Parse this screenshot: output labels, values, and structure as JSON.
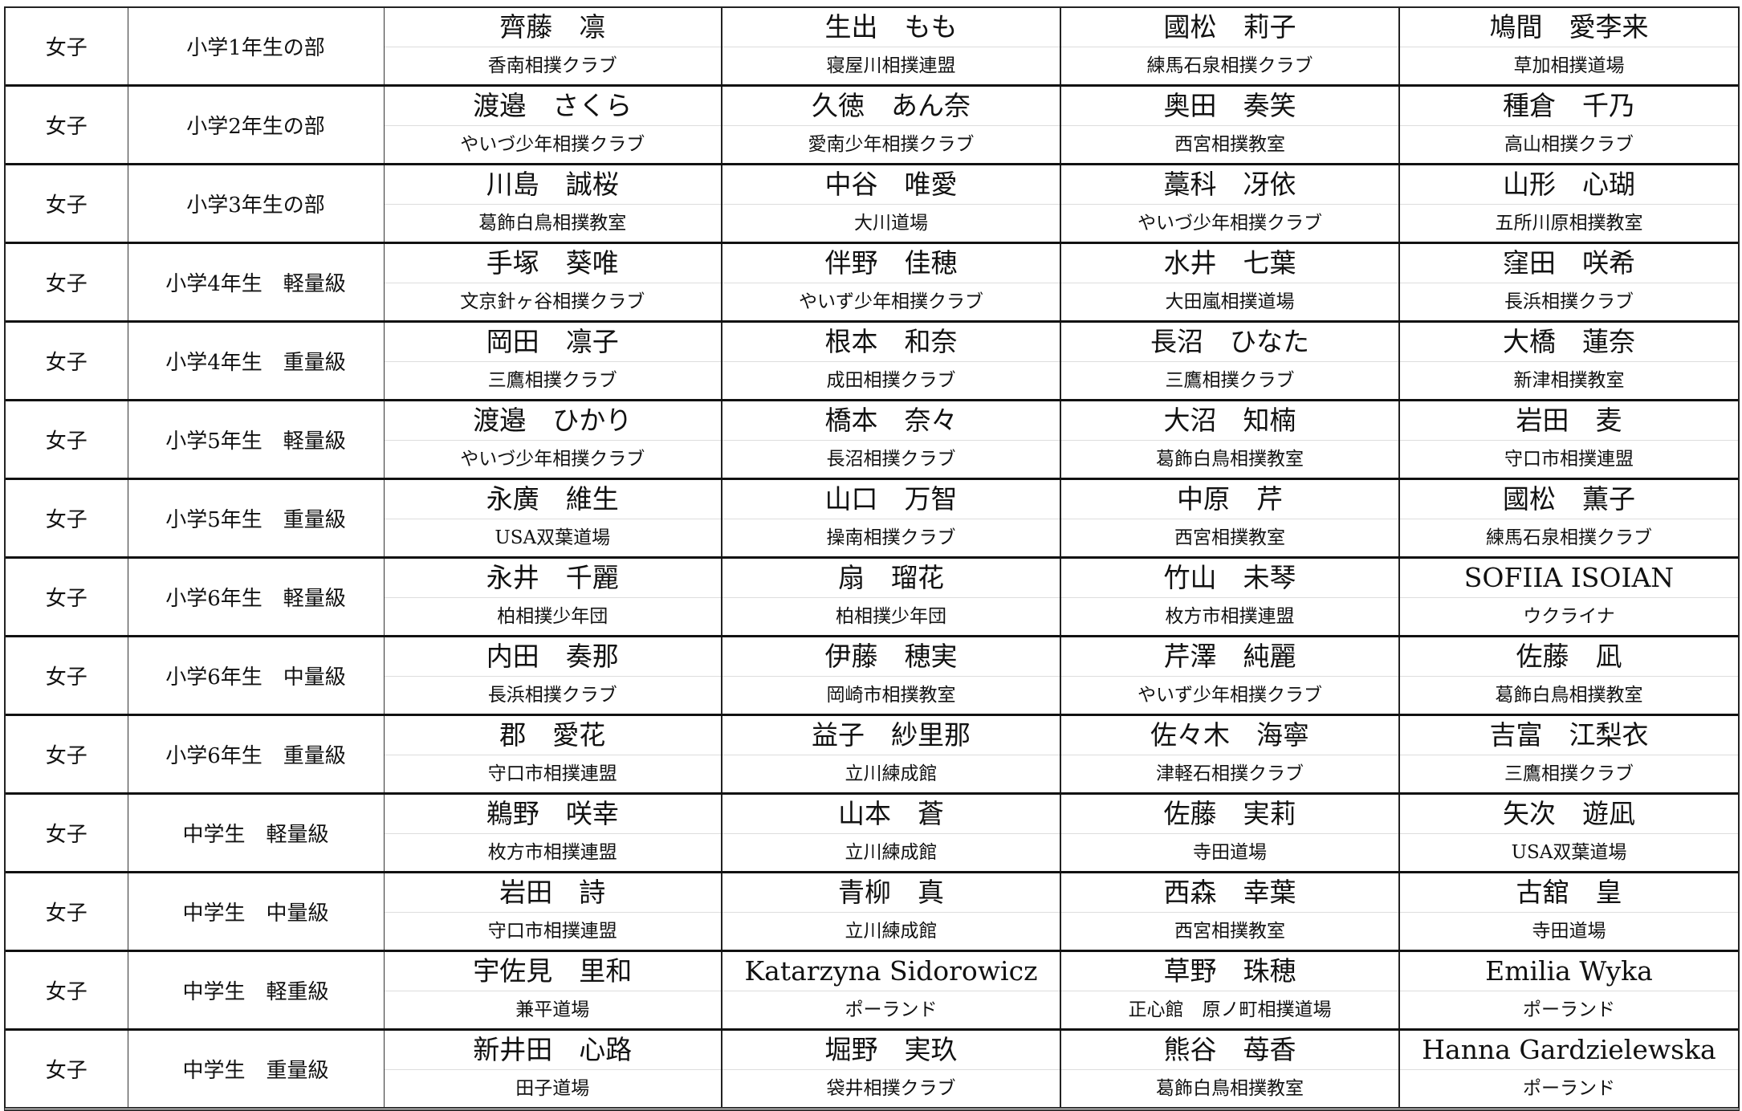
{
  "rows": [
    {
      "gender": "女子",
      "category": "小学1年生の部",
      "entries": [
        {
          "name": "齊藤　凛",
          "club": "香南相撲クラブ"
        },
        {
          "name": "生出　もも",
          "club": "寝屋川相撲連盟"
        },
        {
          "name": "國松　莉子",
          "club": "練馬石泉相撲クラブ"
        },
        {
          "name": "鳩間　愛李来",
          "club": "草加相撲道場"
        }
      ]
    },
    {
      "gender": "女子",
      "category": "小学2年生の部",
      "entries": [
        {
          "name": "渡邉　さくら",
          "club": "やいづ少年相撲クラブ"
        },
        {
          "name": "久徳　あん奈",
          "club": "愛南少年相撲クラブ"
        },
        {
          "name": "奥田　奏笑",
          "club": "西宮相撲教室"
        },
        {
          "name": "種倉　千乃",
          "club": "高山相撲クラブ"
        }
      ]
    },
    {
      "gender": "女子",
      "category": "小学3年生の部",
      "entries": [
        {
          "name": "川島　誠桜",
          "club": "葛飾白鳥相撲教室"
        },
        {
          "name": "中谷　唯愛",
          "club": "大川道場"
        },
        {
          "name": "藁科　冴依",
          "club": "やいづ少年相撲クラブ"
        },
        {
          "name": "山形　心瑚",
          "club": "五所川原相撲教室"
        }
      ]
    },
    {
      "gender": "女子",
      "category": "小学4年生　軽量級",
      "entries": [
        {
          "name": "手塚　葵唯",
          "club": "文京針ヶ谷相撲クラブ"
        },
        {
          "name": "伴野　佳穂",
          "club": "やいず少年相撲クラブ"
        },
        {
          "name": "水井　七葉",
          "club": "大田嵐相撲道場"
        },
        {
          "name": "窪田　咲希",
          "club": "長浜相撲クラブ"
        }
      ]
    },
    {
      "gender": "女子",
      "category": "小学4年生　重量級",
      "entries": [
        {
          "name": "岡田　凛子",
          "club": "三鷹相撲クラブ"
        },
        {
          "name": "根本　和奈",
          "club": "成田相撲クラブ"
        },
        {
          "name": "長沼　ひなた",
          "club": "三鷹相撲クラブ"
        },
        {
          "name": "大橋　蓮奈",
          "club": "新津相撲教室"
        }
      ]
    },
    {
      "gender": "女子",
      "category": "小学5年生　軽量級",
      "entries": [
        {
          "name": "渡邉　ひかり",
          "club": "やいづ少年相撲クラブ"
        },
        {
          "name": "橋本　奈々",
          "club": "長沼相撲クラブ"
        },
        {
          "name": "大沼　知楠",
          "club": "葛飾白鳥相撲教室"
        },
        {
          "name": "岩田　麦",
          "club": "守口市相撲連盟"
        }
      ]
    },
    {
      "gender": "女子",
      "category": "小学5年生　重量級",
      "entries": [
        {
          "name": "永廣　維生",
          "club": "USA双葉道場"
        },
        {
          "name": "山口　万智",
          "club": "操南相撲クラブ"
        },
        {
          "name": "中原　芹",
          "club": "西宮相撲教室"
        },
        {
          "name": "國松　薫子",
          "club": "練馬石泉相撲クラブ"
        }
      ]
    },
    {
      "gender": "女子",
      "category": "小学6年生　軽量級",
      "entries": [
        {
          "name": "永井　千麗",
          "club": "柏相撲少年団"
        },
        {
          "name": "扇　瑠花",
          "club": "柏相撲少年団"
        },
        {
          "name": "竹山　未琴",
          "club": "枚方市相撲連盟"
        },
        {
          "name": "SOFIIA ISOIAN",
          "club": "ウクライナ"
        }
      ]
    },
    {
      "gender": "女子",
      "category": "小学6年生　中量級",
      "entries": [
        {
          "name": "内田　奏那",
          "club": "長浜相撲クラブ"
        },
        {
          "name": "伊藤　穂実",
          "club": "岡崎市相撲教室"
        },
        {
          "name": "芹澤　純麗",
          "club": "やいず少年相撲クラブ"
        },
        {
          "name": "佐藤　凪",
          "club": "葛飾白鳥相撲教室"
        }
      ]
    },
    {
      "gender": "女子",
      "category": "小学6年生　重量級",
      "entries": [
        {
          "name": "郡　愛花",
          "club": "守口市相撲連盟"
        },
        {
          "name": "益子　紗里那",
          "club": "立川練成館"
        },
        {
          "name": "佐々木　海寧",
          "club": "津軽石相撲クラブ"
        },
        {
          "name": "吉富　江梨衣",
          "club": "三鷹相撲クラブ"
        }
      ]
    },
    {
      "gender": "女子",
      "category": "中学生　軽量級",
      "entries": [
        {
          "name": "鵜野　咲幸",
          "club": "枚方市相撲連盟"
        },
        {
          "name": "山本　蒼",
          "club": "立川練成館"
        },
        {
          "name": "佐藤　実莉",
          "club": "寺田道場"
        },
        {
          "name": "矢次　遊凪",
          "club": "USA双葉道場"
        }
      ]
    },
    {
      "gender": "女子",
      "category": "中学生　中量級",
      "entries": [
        {
          "name": "岩田　詩",
          "club": "守口市相撲連盟"
        },
        {
          "name": "青柳　真",
          "club": "立川練成館"
        },
        {
          "name": "西森　幸葉",
          "club": "西宮相撲教室"
        },
        {
          "name": "古舘　皇",
          "club": "寺田道場"
        }
      ]
    },
    {
      "gender": "女子",
      "category": "中学生　軽重級",
      "entries": [
        {
          "name": "宇佐見　里和",
          "club": "兼平道場"
        },
        {
          "name": "Katarzyna Sidorowicz",
          "club": "ポーランド"
        },
        {
          "name": "草野　珠穂",
          "club": "正心館　原ノ町相撲道場"
        },
        {
          "name": "Emilia Wyka",
          "club": "ポーランド"
        }
      ]
    },
    {
      "gender": "女子",
      "category": "中学生　重量級",
      "entries": [
        {
          "name": "新井田　心路",
          "club": "田子道場"
        },
        {
          "name": "堀野　実玖",
          "club": "袋井相撲クラブ"
        },
        {
          "name": "熊谷　苺香",
          "club": "葛飾白鳥相撲教室"
        },
        {
          "name": "Hanna Gardzielewska",
          "club": "ポーランド"
        }
      ]
    }
  ]
}
